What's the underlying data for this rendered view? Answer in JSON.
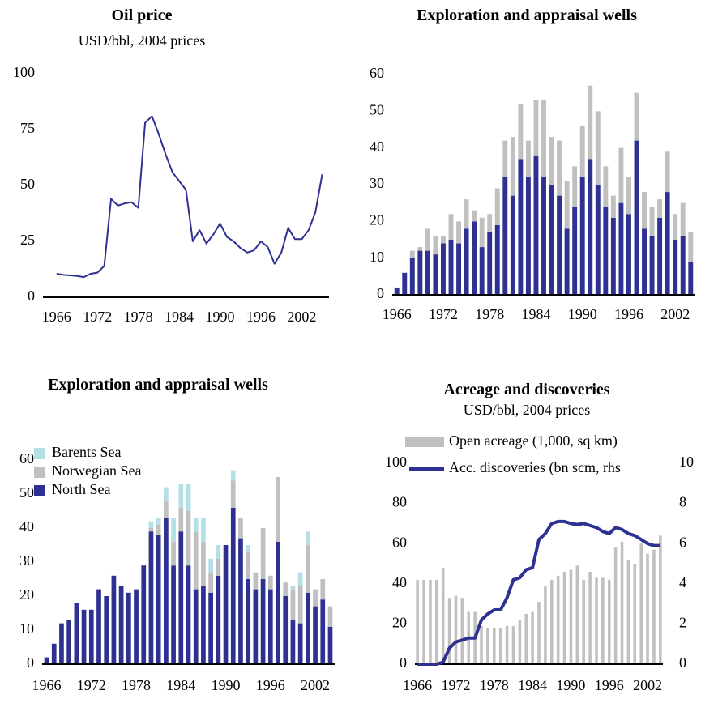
{
  "chart_data": [
    {
      "type": "line",
      "title": "Oil price",
      "subtitle": "USD/bbl, 2004 prices",
      "x": [
        1966,
        1967,
        1968,
        1969,
        1970,
        1971,
        1972,
        1973,
        1974,
        1975,
        1976,
        1977,
        1978,
        1979,
        1980,
        1981,
        1982,
        1983,
        1984,
        1985,
        1986,
        1987,
        1988,
        1989,
        1990,
        1991,
        1992,
        1993,
        1994,
        1995,
        1996,
        1997,
        1998,
        1999,
        2000,
        2001,
        2002,
        2003,
        2004,
        2005
      ],
      "values": [
        10.5,
        10,
        9.8,
        9.5,
        9,
        10.5,
        11,
        14,
        44,
        41,
        42,
        42.5,
        40,
        78,
        81,
        73,
        64,
        56,
        52,
        48,
        25,
        30,
        24,
        28,
        33,
        27,
        25,
        22,
        20,
        21,
        25,
        22.5,
        15,
        20,
        31,
        26,
        26,
        30,
        38,
        55
      ],
      "color": "#2e3192",
      "xlim": [
        1964,
        2006
      ],
      "xticks": [
        1966,
        1972,
        1978,
        1984,
        1990,
        1996,
        2002
      ],
      "ylim": [
        0,
        100
      ],
      "yticks": [
        0,
        25,
        50,
        75,
        100
      ]
    },
    {
      "type": "bar",
      "title": "Exploration and appraisal wells",
      "x": [
        1966,
        1967,
        1968,
        1969,
        1970,
        1971,
        1972,
        1973,
        1974,
        1975,
        1976,
        1977,
        1978,
        1979,
        1980,
        1981,
        1982,
        1983,
        1984,
        1985,
        1986,
        1987,
        1988,
        1989,
        1990,
        1991,
        1992,
        1993,
        1994,
        1995,
        1996,
        1997,
        1998,
        1999,
        2000,
        2001,
        2002,
        2003,
        2004
      ],
      "series": [
        {
          "color": "#2e3192",
          "values": [
            2,
            6,
            10,
            12,
            12,
            11,
            14,
            15,
            14,
            18,
            20,
            13,
            17,
            19,
            32,
            27,
            37,
            32,
            38,
            32,
            30,
            27,
            18,
            24,
            32,
            37,
            30,
            24,
            21,
            25,
            22,
            42,
            18,
            16,
            21,
            28,
            15,
            16,
            9
          ]
        },
        {
          "color": "#c0c0c0",
          "values": [
            0,
            0,
            2,
            1,
            6,
            5,
            2,
            7,
            6,
            8,
            3,
            8,
            5,
            10,
            10,
            16,
            15,
            10,
            15,
            21,
            13,
            15,
            13,
            11,
            14,
            20,
            20,
            11,
            6,
            15,
            10,
            13,
            10,
            8,
            5,
            11,
            7,
            9,
            8
          ]
        }
      ],
      "xlim": [
        1965.4,
        2004.6
      ],
      "xticks": [
        1966,
        1972,
        1978,
        1984,
        1990,
        1996,
        2002
      ],
      "ylim": [
        0,
        60
      ],
      "yticks": [
        0,
        10,
        20,
        30,
        40,
        50,
        60
      ]
    },
    {
      "type": "bar",
      "title": "Exploration and appraisal wells",
      "x": [
        1966,
        1967,
        1968,
        1969,
        1970,
        1971,
        1972,
        1973,
        1974,
        1975,
        1976,
        1977,
        1978,
        1979,
        1980,
        1981,
        1982,
        1983,
        1984,
        1985,
        1986,
        1987,
        1988,
        1989,
        1990,
        1991,
        1992,
        1993,
        1994,
        1995,
        1996,
        1997,
        1998,
        1999,
        2000,
        2001,
        2002,
        2003,
        2004
      ],
      "series": [
        {
          "name": "North Sea",
          "color": "#2e3192",
          "values": [
            2,
            6,
            12,
            13,
            18,
            16,
            16,
            22,
            20,
            26,
            23,
            21,
            22,
            29,
            39,
            38,
            43,
            29,
            39,
            29,
            22,
            23,
            21,
            26,
            35,
            46,
            37,
            25,
            22,
            25,
            22,
            36,
            20,
            13,
            12,
            21,
            17,
            19,
            11
          ]
        },
        {
          "name": "Norwegian Sea",
          "color": "#c0c0c0",
          "values": [
            0,
            0,
            0,
            0,
            0,
            0,
            0,
            0,
            0,
            0,
            0,
            0,
            0,
            0,
            1,
            3,
            5,
            7,
            7,
            16,
            17,
            13,
            6,
            5,
            0,
            8,
            6,
            8,
            5,
            15,
            4,
            19,
            4,
            9,
            11,
            14,
            5,
            6,
            6
          ]
        },
        {
          "name": "Barents Sea",
          "color": "#b3dfe6",
          "values": [
            0,
            0,
            0,
            0,
            0,
            0,
            0,
            0,
            0,
            0,
            0,
            0,
            0,
            0,
            2,
            2,
            4,
            7,
            7,
            8,
            4,
            7,
            4,
            4,
            0,
            3,
            0,
            2,
            0,
            0,
            0,
            0,
            0,
            1,
            4,
            4,
            0,
            0,
            0
          ]
        }
      ],
      "xlim": [
        1965.4,
        2004.6
      ],
      "xticks": [
        1966,
        1972,
        1978,
        1984,
        1990,
        1996,
        2002
      ],
      "ylim": [
        0,
        60
      ],
      "yticks": [
        0,
        10,
        20,
        30,
        40,
        50,
        60
      ],
      "legend": "upper left"
    },
    {
      "type": "bar",
      "title": "Acreage and discoveries",
      "subtitle": "USD/bbl, 2004 prices",
      "x": [
        1966,
        1967,
        1968,
        1969,
        1970,
        1971,
        1972,
        1973,
        1974,
        1975,
        1976,
        1977,
        1978,
        1979,
        1980,
        1981,
        1982,
        1983,
        1984,
        1985,
        1986,
        1987,
        1988,
        1989,
        1990,
        1991,
        1992,
        1993,
        1994,
        1995,
        1996,
        1997,
        1998,
        1999,
        2000,
        2001,
        2002,
        2003,
        2004
      ],
      "series": [
        {
          "name": "Open acreage (1,000, sq km)",
          "color": "#c0c0c0",
          "values": [
            42,
            42,
            42,
            42,
            48,
            33,
            34,
            33,
            26,
            26,
            19,
            18,
            18,
            18,
            19,
            19,
            22,
            25,
            26,
            31,
            39,
            42,
            44,
            46,
            47,
            49,
            42,
            46,
            43,
            43,
            42,
            58,
            61,
            52,
            50,
            60,
            55,
            57,
            64
          ]
        },
        {
          "name": "Acc. discoveries (bn scm, rhs",
          "color": "#2e3192",
          "type": "line",
          "axis": "y2",
          "values": [
            0,
            0,
            0,
            0,
            0.1,
            0.8,
            1.1,
            1.2,
            1.3,
            1.3,
            2.2,
            2.5,
            2.7,
            2.7,
            3.3,
            4.2,
            4.3,
            4.7,
            4.8,
            6.2,
            6.5,
            7.0,
            7.1,
            7.1,
            7.0,
            6.95,
            7.0,
            6.9,
            6.8,
            6.6,
            6.5,
            6.8,
            6.7,
            6.5,
            6.4,
            6.2,
            6.0,
            5.9,
            5.9
          ]
        }
      ],
      "xlim": [
        1965.6,
        2004.4
      ],
      "xticks": [
        1966,
        1972,
        1978,
        1984,
        1990,
        1996,
        2002
      ],
      "ylim": [
        0,
        100
      ],
      "yticks": [
        0,
        20,
        40,
        60,
        80,
        100
      ],
      "y2lim": [
        0,
        10
      ],
      "y2ticks": [
        0,
        2,
        4,
        6,
        8,
        10
      ],
      "legend": "top"
    }
  ]
}
